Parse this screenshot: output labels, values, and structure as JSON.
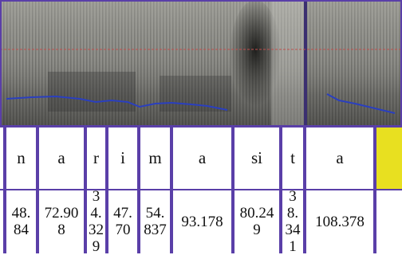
{
  "table": {
    "rows": [
      [
        "n",
        "a",
        "r",
        "i",
        "m",
        "a",
        "si",
        "t",
        "a"
      ],
      [
        "48.84",
        "72.908",
        "34.329",
        "47.70",
        "54.837",
        "93.178",
        "80.249",
        "38.341",
        "108.378"
      ]
    ]
  }
}
